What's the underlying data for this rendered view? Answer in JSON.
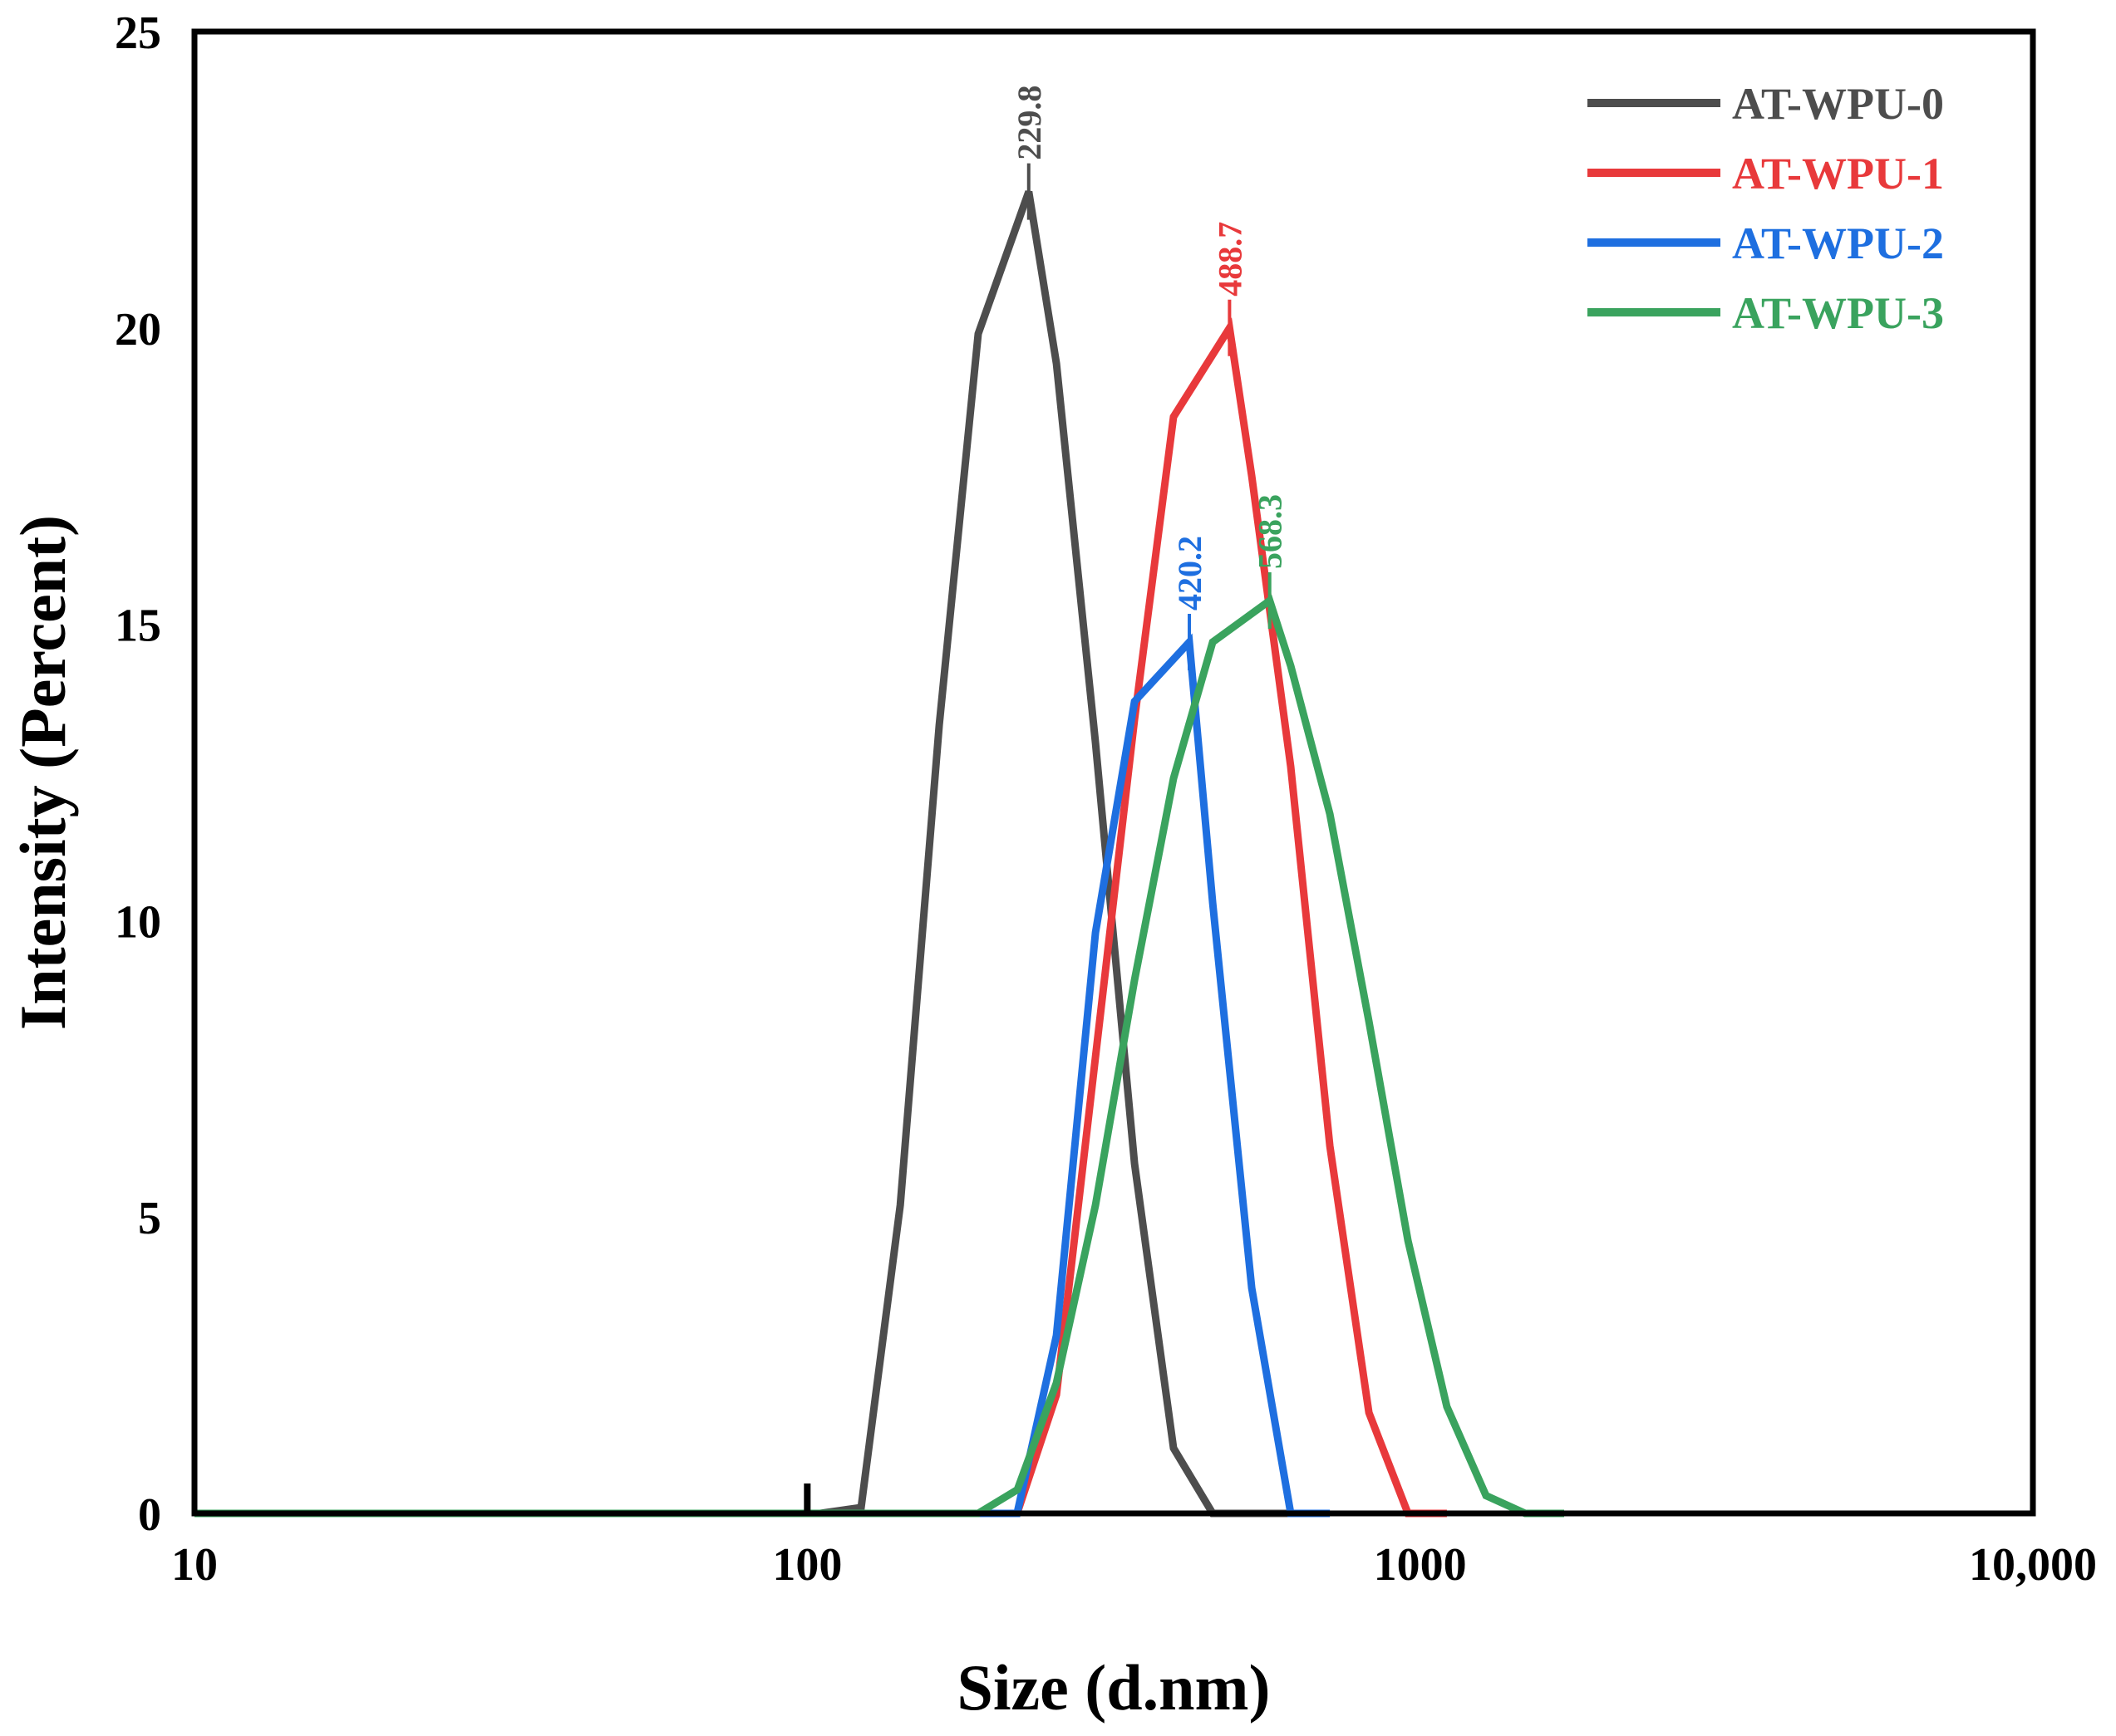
{
  "chart_data": {
    "type": "line",
    "title": "",
    "xlabel": "Size (d.nm)",
    "ylabel": "Intensity (Percent)",
    "xscale": "log",
    "xlim": [
      10,
      10000
    ],
    "ylim": [
      0,
      25
    ],
    "xticks": [
      {
        "value": 10,
        "label": "10"
      },
      {
        "value": 100,
        "label": "100"
      },
      {
        "value": 1000,
        "label": "1000"
      },
      {
        "value": 10000,
        "label": "10,000"
      }
    ],
    "yticks": [
      {
        "value": 0,
        "label": "0"
      },
      {
        "value": 5,
        "label": "5"
      },
      {
        "value": 10,
        "label": "10"
      },
      {
        "value": 15,
        "label": "15"
      },
      {
        "value": 20,
        "label": "20"
      },
      {
        "value": 25,
        "label": "25"
      }
    ],
    "grid": false,
    "legend_position": "top-right",
    "series": [
      {
        "name": "AT-WPU-0",
        "color": "#4d4d4d",
        "peak": {
          "x": 229.8,
          "y": 22.3,
          "label": "229.8"
        },
        "points": [
          [
            10,
            0
          ],
          [
            105,
            0
          ],
          [
            122.4,
            0.1
          ],
          [
            141.8,
            5.2
          ],
          [
            164.2,
            13.3
          ],
          [
            190.1,
            19.9
          ],
          [
            229.8,
            22.3
          ],
          [
            255,
            19.4
          ],
          [
            295.3,
            13.0
          ],
          [
            342,
            5.9
          ],
          [
            396,
            1.1
          ],
          [
            458.7,
            0
          ],
          [
            531.2,
            0
          ],
          [
            615.1,
            0
          ]
        ]
      },
      {
        "name": "AT-WPU-1",
        "color": "#e8393b",
        "peak": {
          "x": 488.7,
          "y": 20.0,
          "label": "488.7"
        },
        "points": [
          [
            10,
            0
          ],
          [
            220,
            0
          ],
          [
            255,
            2.0
          ],
          [
            295.3,
            7.7
          ],
          [
            342,
            13.4
          ],
          [
            396,
            18.5
          ],
          [
            488.7,
            20.0
          ],
          [
            531.2,
            17.5
          ],
          [
            615.1,
            12.6
          ],
          [
            712.4,
            6.2
          ],
          [
            825,
            1.7
          ],
          [
            955.4,
            0
          ],
          [
            1106,
            0
          ]
        ]
      },
      {
        "name": "AT-WPU-2",
        "color": "#1e6fe0",
        "peak": {
          "x": 420.2,
          "y": 14.7,
          "label": "420.2"
        },
        "points": [
          [
            10,
            0
          ],
          [
            220,
            0
          ],
          [
            255,
            3.0
          ],
          [
            295.3,
            9.8
          ],
          [
            342,
            13.7
          ],
          [
            420.2,
            14.7
          ],
          [
            458.7,
            10.3
          ],
          [
            531.2,
            3.8
          ],
          [
            615.1,
            0
          ],
          [
            712.4,
            0
          ]
        ]
      },
      {
        "name": "AT-WPU-3",
        "color": "#3aa35e",
        "peak": {
          "x": 568.3,
          "y": 15.4,
          "label": "568.3"
        },
        "points": [
          [
            10,
            0
          ],
          [
            190.1,
            0
          ],
          [
            220.2,
            0.4
          ],
          [
            255,
            2.2
          ],
          [
            295.3,
            5.2
          ],
          [
            342,
            9.0
          ],
          [
            396,
            12.4
          ],
          [
            458.7,
            14.7
          ],
          [
            568.3,
            15.4
          ],
          [
            615.1,
            14.3
          ],
          [
            712.4,
            11.8
          ],
          [
            825,
            8.3
          ],
          [
            955.4,
            4.6
          ],
          [
            1106,
            1.8
          ],
          [
            1281,
            0.3
          ],
          [
            1484,
            0
          ],
          [
            1718,
            0
          ]
        ]
      }
    ]
  }
}
